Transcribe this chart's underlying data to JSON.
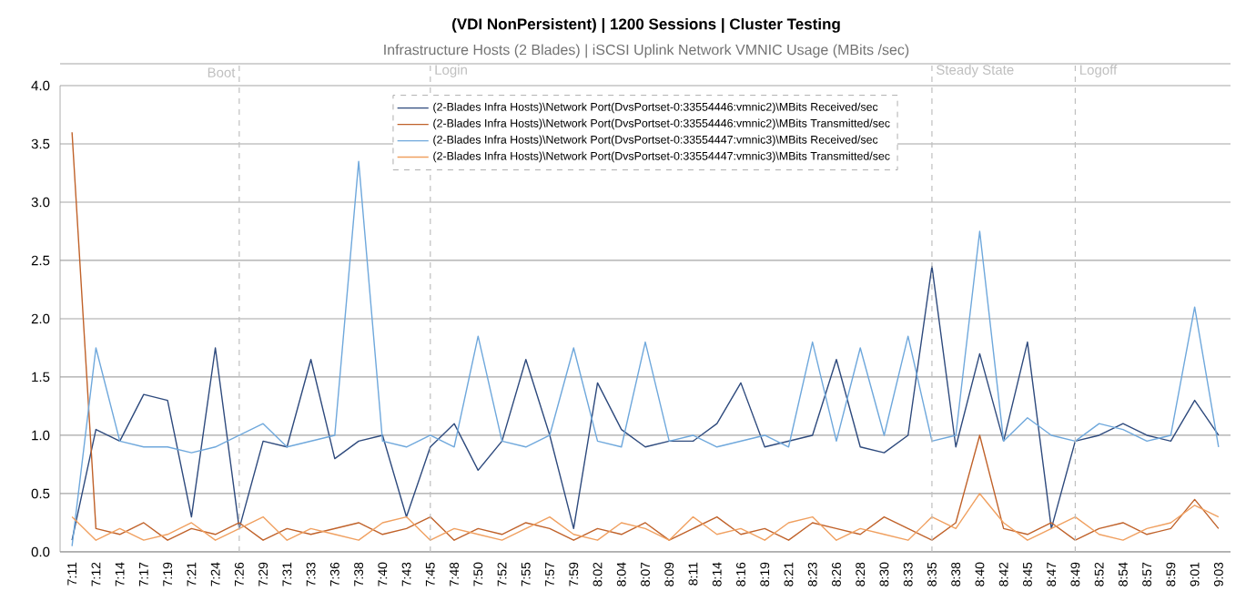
{
  "chart_data": {
    "type": "line",
    "title": "(VDI NonPersistent) | 1200 Sessions | Cluster Testing",
    "subtitle": "Infrastructure Hosts (2 Blades) | iSCSI Uplink Network VMNIC Usage (MBits /sec)",
    "categories": [
      "7:11",
      "7:12",
      "7:14",
      "7:17",
      "7:19",
      "7:21",
      "7:24",
      "7:26",
      "7:29",
      "7:31",
      "7:33",
      "7:36",
      "7:38",
      "7:40",
      "7:43",
      "7:45",
      "7:48",
      "7:50",
      "7:52",
      "7:55",
      "7:57",
      "7:59",
      "8:02",
      "8:04",
      "8:07",
      "8:09",
      "8:11",
      "8:14",
      "8:16",
      "8:19",
      "8:21",
      "8:23",
      "8:26",
      "8:28",
      "8:30",
      "8:33",
      "8:35",
      "8:38",
      "8:40",
      "8:42",
      "8:45",
      "8:47",
      "8:49",
      "8:52",
      "8:54",
      "8:57",
      "8:59",
      "9:01",
      "9:03"
    ],
    "series": [
      {
        "name": "(2-Blades Infra Hosts)\\Network Port(DvsPortset-0:33554446:vmnic2)\\MBits Received/sec",
        "color": "#2e4a7d",
        "values": [
          0.1,
          1.05,
          0.95,
          1.35,
          1.3,
          0.3,
          1.75,
          0.2,
          0.95,
          0.9,
          1.65,
          0.8,
          0.95,
          1.0,
          0.3,
          0.9,
          1.1,
          0.7,
          0.95,
          1.65,
          1.0,
          0.2,
          1.45,
          1.05,
          0.9,
          0.95,
          0.95,
          1.1,
          1.45,
          0.9,
          0.95,
          1.0,
          1.65,
          0.9,
          0.85,
          1.0,
          2.45,
          0.9,
          1.7,
          0.95,
          1.8,
          0.2,
          0.95,
          1.0,
          1.1,
          1.0,
          0.95,
          1.3,
          1.0
        ]
      },
      {
        "name": "(2-Blades Infra Hosts)\\Network Port(DvsPortset-0:33554446:vmnic2)\\MBits Transmitted/sec",
        "color": "#c0622a",
        "values": [
          3.6,
          0.2,
          0.15,
          0.25,
          0.1,
          0.2,
          0.15,
          0.25,
          0.1,
          0.2,
          0.15,
          0.2,
          0.25,
          0.15,
          0.2,
          0.3,
          0.1,
          0.2,
          0.15,
          0.25,
          0.2,
          0.1,
          0.2,
          0.15,
          0.25,
          0.1,
          0.2,
          0.3,
          0.15,
          0.2,
          0.1,
          0.25,
          0.2,
          0.15,
          0.3,
          0.2,
          0.1,
          0.25,
          1.0,
          0.2,
          0.15,
          0.25,
          0.1,
          0.2,
          0.25,
          0.15,
          0.2,
          0.45,
          0.2
        ]
      },
      {
        "name": "(2-Blades Infra Hosts)\\Network Port(DvsPortset-0:33554447:vmnic3)\\MBits Received/sec",
        "color": "#6fa8dc",
        "values": [
          0.05,
          1.75,
          0.95,
          0.9,
          0.9,
          0.85,
          0.9,
          1.0,
          1.1,
          0.9,
          0.95,
          1.0,
          3.35,
          0.95,
          0.9,
          1.0,
          0.9,
          1.85,
          0.95,
          0.9,
          1.0,
          1.75,
          0.95,
          0.9,
          1.8,
          0.95,
          1.0,
          0.9,
          0.95,
          1.0,
          0.9,
          1.8,
          0.95,
          1.75,
          1.0,
          1.85,
          0.95,
          1.0,
          2.75,
          0.95,
          1.15,
          1.0,
          0.95,
          1.1,
          1.05,
          0.95,
          1.0,
          2.1,
          0.9
        ]
      },
      {
        "name": "(2-Blades Infra Hosts)\\Network Port(DvsPortset-0:33554447:vmnic3)\\MBits Transmitted/sec",
        "color": "#f0a060",
        "values": [
          0.3,
          0.1,
          0.2,
          0.1,
          0.15,
          0.25,
          0.1,
          0.2,
          0.3,
          0.1,
          0.2,
          0.15,
          0.1,
          0.25,
          0.3,
          0.1,
          0.2,
          0.15,
          0.1,
          0.2,
          0.3,
          0.15,
          0.1,
          0.25,
          0.2,
          0.1,
          0.3,
          0.15,
          0.2,
          0.1,
          0.25,
          0.3,
          0.1,
          0.2,
          0.15,
          0.1,
          0.3,
          0.2,
          0.5,
          0.25,
          0.1,
          0.2,
          0.3,
          0.15,
          0.1,
          0.2,
          0.25,
          0.4,
          0.3
        ]
      }
    ],
    "ylim": [
      0,
      4
    ],
    "yticks": [
      {
        "value": 0,
        "label": "0.0"
      },
      {
        "value": 0.5,
        "label": "0.5"
      },
      {
        "value": 1,
        "label": "1.0"
      },
      {
        "value": 1.5,
        "label": "1.5"
      },
      {
        "value": 2,
        "label": "2.0"
      },
      {
        "value": 2.5,
        "label": "2.5"
      },
      {
        "value": 3,
        "label": "3.0"
      },
      {
        "value": 3.5,
        "label": "3.5"
      },
      {
        "value": 4,
        "label": "4.0"
      }
    ],
    "grid": "y",
    "legend": "top",
    "marker": "none",
    "line_style": "solid",
    "ref_lines": [
      {
        "axis": "x",
        "value": "7:26",
        "label": "Boot",
        "color": "#bfbfbf",
        "line_style": "dashed"
      },
      {
        "axis": "x",
        "value": "7:45",
        "label": "Login",
        "color": "#bfbfbf",
        "line_style": "dashed"
      },
      {
        "axis": "x",
        "value": "8:35",
        "label": "Steady State",
        "color": "#bfbfbf",
        "line_style": "dashed"
      },
      {
        "axis": "x",
        "value": "8:49",
        "label": "Logoff",
        "color": "#bfbfbf",
        "line_style": "dashed"
      }
    ]
  }
}
